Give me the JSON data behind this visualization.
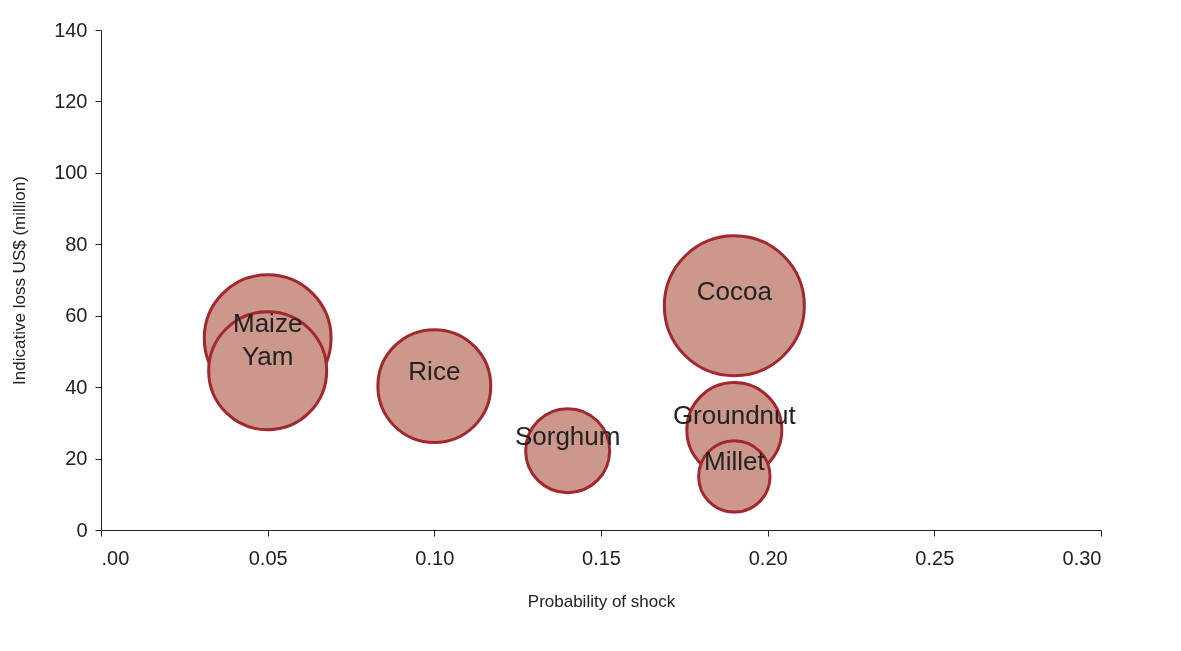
{
  "chart_data": {
    "type": "bubble",
    "xlabel": "Probability of shock",
    "ylabel": "Indicative loss US$ (million)",
    "x": [
      0.05,
      0.05,
      0.1,
      0.14,
      0.19,
      0.19,
      0.19
    ],
    "values": [
      53.7,
      44.6,
      40.3,
      22.2,
      62.8,
      28,
      15
    ],
    "sizes": [
      0.82,
      0.71,
      0.65,
      0.36,
      1,
      0.46,
      0.26
    ],
    "color": "#cc988b",
    "annotations": [
      {
        "text": "Maize",
        "x": 0.05,
        "y": 53.7
      },
      {
        "text": "Yam",
        "x": 0.05,
        "y": 44.6
      },
      {
        "text": "Rice",
        "x": 0.1,
        "y": 40.3
      },
      {
        "text": "Sorghum",
        "x": 0.14,
        "y": 22.2
      },
      {
        "text": "Cocoa",
        "x": 0.19,
        "y": 62.8
      },
      {
        "text": "Groundnut",
        "x": 0.19,
        "y": 28
      },
      {
        "text": "Millet",
        "x": 0.19,
        "y": 15
      }
    ],
    "xlim": [
      0,
      0.3
    ],
    "xticks": [
      {
        "value": 0,
        "label": ".00"
      },
      {
        "value": 0.05,
        "label": "0.05"
      },
      {
        "value": 0.1,
        "label": "0.10"
      },
      {
        "value": 0.15,
        "label": "0.15"
      },
      {
        "value": 0.2,
        "label": "0.20"
      },
      {
        "value": 0.25,
        "label": "0.25"
      },
      {
        "value": 0.3,
        "label": "0.30"
      }
    ],
    "ylim": [
      0,
      140
    ],
    "yticks": [
      0,
      20,
      40,
      60,
      80,
      100,
      120,
      140
    ],
    "grid": false,
    "legend": false
  }
}
